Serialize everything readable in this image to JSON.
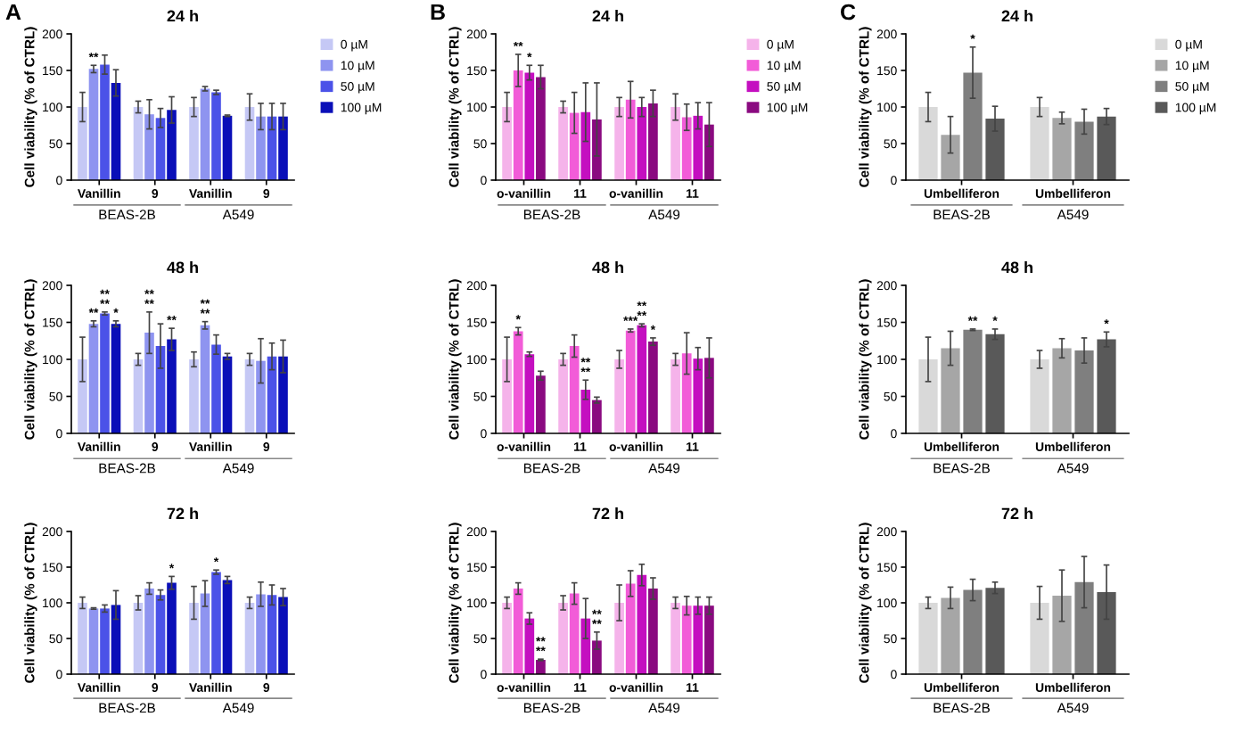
{
  "chart_data": [
    {
      "type": "bar",
      "title": "24 h",
      "ylabel": "Cell viability (% of CTRL)",
      "categories": [
        "Vanillin",
        "9",
        "Vanillin",
        "9"
      ],
      "ylim": [
        0,
        200
      ],
      "yticks": [
        0,
        50,
        100,
        150,
        200
      ],
      "grid": false,
      "legend": "right",
      "annotations": [
        "A",
        "BEAS-2B",
        "A549"
      ],
      "series": [
        {
          "name": "0 µM",
          "color": "#c5c8f5",
          "values": [
            100,
            100,
            100,
            100
          ],
          "errors": [
            20,
            8,
            13,
            18
          ],
          "value_labels": [
            null,
            null,
            null,
            null
          ]
        },
        {
          "name": "10 µM",
          "color": "#8e94f0",
          "values": [
            152,
            90,
            125,
            87
          ],
          "errors": [
            5,
            20,
            3,
            18
          ],
          "value_labels": [
            "**",
            null,
            null,
            null
          ]
        },
        {
          "name": "50 µM",
          "color": "#4b52e8",
          "values": [
            158,
            85,
            120,
            87
          ],
          "errors": [
            13,
            13,
            3,
            18
          ],
          "value_labels": [
            null,
            null,
            null,
            null
          ]
        },
        {
          "name": "100 µM",
          "color": "#0a0fb8",
          "values": [
            133,
            96,
            88,
            87
          ],
          "errors": [
            18,
            18,
            1,
            18
          ],
          "value_labels": [
            null,
            null,
            null,
            null
          ]
        }
      ]
    },
    {
      "type": "bar",
      "title": "48 h",
      "ylabel": "Cell viability (% of CTRL)",
      "categories": [
        "Vanillin",
        "9",
        "Vanillin",
        "9"
      ],
      "ylim": [
        0,
        200
      ],
      "yticks": [
        0,
        50,
        100,
        150,
        200
      ],
      "grid": false,
      "legend": false,
      "annotations": [
        "BEAS-2B",
        "A549"
      ],
      "series": [
        {
          "color": "#c5c8f5",
          "values": [
            100,
            100,
            100,
            100
          ],
          "errors": [
            30,
            8,
            10,
            8
          ],
          "value_labels": [
            null,
            null,
            null,
            null
          ]
        },
        {
          "color": "#8e94f0",
          "values": [
            148,
            136,
            146,
            98
          ],
          "errors": [
            4,
            28,
            5,
            30
          ],
          "value_labels": [
            "**",
            "**\n**",
            "**\n**",
            null
          ]
        },
        {
          "color": "#4b52e8",
          "values": [
            162,
            118,
            120,
            104
          ],
          "errors": [
            2,
            30,
            13,
            18
          ],
          "value_labels": [
            "**\n**",
            null,
            null,
            null
          ]
        },
        {
          "color": "#0a0fb8",
          "values": [
            148,
            127,
            104,
            104
          ],
          "errors": [
            4,
            15,
            4,
            22
          ],
          "value_labels": [
            "*",
            "**",
            null,
            null
          ]
        }
      ]
    },
    {
      "type": "bar",
      "title": "72 h",
      "ylabel": "Cell viability (% of CTRL)",
      "categories": [
        "Vanillin",
        "9",
        "Vanillin",
        "9"
      ],
      "ylim": [
        0,
        200
      ],
      "yticks": [
        0,
        50,
        100,
        150,
        200
      ],
      "grid": false,
      "legend": false,
      "annotations": [
        "BEAS-2B",
        "A549"
      ],
      "series": [
        {
          "color": "#c5c8f5",
          "values": [
            100,
            100,
            100,
            100
          ],
          "errors": [
            8,
            10,
            23,
            8
          ],
          "value_labels": [
            null,
            null,
            null,
            null
          ]
        },
        {
          "color": "#8e94f0",
          "values": [
            92,
            120,
            113,
            112
          ],
          "errors": [
            1,
            8,
            18,
            17
          ],
          "value_labels": [
            null,
            null,
            null,
            null
          ]
        },
        {
          "color": "#4b52e8",
          "values": [
            92,
            111,
            143,
            111
          ],
          "errors": [
            5,
            7,
            3,
            14
          ],
          "value_labels": [
            null,
            null,
            "*",
            null
          ]
        },
        {
          "color": "#0a0fb8",
          "values": [
            97,
            128,
            132,
            108
          ],
          "errors": [
            20,
            9,
            5,
            12
          ],
          "value_labels": [
            null,
            "*",
            null,
            null
          ]
        }
      ]
    },
    {
      "type": "bar",
      "title": "24 h",
      "ylabel": "Cell viability (% of CTRL)",
      "categories": [
        "o-vanillin",
        "11",
        "o-vanillin",
        "11"
      ],
      "ylim": [
        0,
        200
      ],
      "yticks": [
        0,
        50,
        100,
        150,
        200
      ],
      "grid": false,
      "legend": "right",
      "annotations": [
        "B",
        "BEAS-2B",
        "A549"
      ],
      "series": [
        {
          "name": "0 µM",
          "color": "#f5b3ea",
          "values": [
            100,
            100,
            100,
            100
          ],
          "errors": [
            20,
            8,
            13,
            18
          ],
          "value_labels": [
            null,
            null,
            null,
            null
          ]
        },
        {
          "name": "10 µM",
          "color": "#f25cd8",
          "values": [
            150,
            92,
            110,
            86
          ],
          "errors": [
            22,
            28,
            25,
            18
          ],
          "value_labels": [
            "**",
            null,
            null,
            null
          ]
        },
        {
          "name": "50 µM",
          "color": "#c40fc0",
          "values": [
            147,
            93,
            100,
            88
          ],
          "errors": [
            10,
            40,
            13,
            18
          ],
          "value_labels": [
            "*",
            null,
            null,
            null
          ]
        },
        {
          "name": "100 µM",
          "color": "#8a0a80",
          "values": [
            141,
            83,
            105,
            76
          ],
          "errors": [
            16,
            50,
            18,
            30
          ],
          "value_labels": [
            null,
            null,
            null,
            null
          ]
        }
      ]
    },
    {
      "type": "bar",
      "title": "48 h",
      "ylabel": "Cell viability (% of CTRL)",
      "categories": [
        "o-vanillin",
        "11",
        "o-vanillin",
        "11"
      ],
      "ylim": [
        0,
        200
      ],
      "yticks": [
        0,
        50,
        100,
        150,
        200
      ],
      "grid": false,
      "legend": false,
      "annotations": [
        "BEAS-2B",
        "A549"
      ],
      "series": [
        {
          "color": "#f5b3ea",
          "values": [
            100,
            100,
            100,
            100
          ],
          "errors": [
            30,
            8,
            12,
            8
          ],
          "value_labels": [
            null,
            null,
            null,
            null
          ]
        },
        {
          "color": "#f25cd8",
          "values": [
            138,
            118,
            139,
            108
          ],
          "errors": [
            5,
            15,
            2,
            28
          ],
          "value_labels": [
            "*",
            null,
            "***",
            null
          ]
        },
        {
          "color": "#c40fc0",
          "values": [
            107,
            59,
            146,
            101
          ],
          "errors": [
            3,
            13,
            2,
            15
          ],
          "value_labels": [
            null,
            "**\n**",
            "**\n**",
            null
          ]
        },
        {
          "color": "#8a0a80",
          "values": [
            78,
            45,
            124,
            102
          ],
          "errors": [
            6,
            4,
            5,
            27
          ],
          "value_labels": [
            null,
            null,
            "*",
            null
          ]
        }
      ]
    },
    {
      "type": "bar",
      "title": "72 h",
      "ylabel": "Cell viability (% of CTRL)",
      "categories": [
        "o-vanillin",
        "11",
        "o-vanillin",
        "11"
      ],
      "ylim": [
        0,
        200
      ],
      "yticks": [
        0,
        50,
        100,
        150,
        200
      ],
      "grid": false,
      "legend": false,
      "annotations": [
        "BEAS-2B",
        "A549"
      ],
      "series": [
        {
          "color": "#f5b3ea",
          "values": [
            100,
            100,
            100,
            100
          ],
          "errors": [
            8,
            10,
            25,
            8
          ],
          "value_labels": [
            null,
            null,
            null,
            null
          ]
        },
        {
          "color": "#f25cd8",
          "values": [
            120,
            113,
            127,
            96
          ],
          "errors": [
            8,
            15,
            18,
            13
          ],
          "value_labels": [
            null,
            null,
            null,
            null
          ]
        },
        {
          "color": "#c40fc0",
          "values": [
            78,
            78,
            139,
            96
          ],
          "errors": [
            8,
            28,
            15,
            12
          ],
          "value_labels": [
            null,
            null,
            null,
            null
          ]
        },
        {
          "color": "#8a0a80",
          "values": [
            20,
            47,
            120,
            96
          ],
          "errors": [
            1,
            12,
            15,
            12
          ],
          "value_labels": [
            "**\n**",
            "**\n**",
            null,
            null
          ]
        }
      ]
    },
    {
      "type": "bar",
      "title": "24 h",
      "ylabel": "Cell viability (% of CTRL)",
      "categories": [
        "Umbelliferon",
        "Umbelliferon"
      ],
      "ylim": [
        0,
        200
      ],
      "yticks": [
        0,
        50,
        100,
        150,
        200
      ],
      "grid": false,
      "legend": "right",
      "annotations": [
        "C",
        "BEAS-2B",
        "A549"
      ],
      "series": [
        {
          "name": "0 µM",
          "color": "#d9d9d9",
          "values": [
            100,
            100
          ],
          "errors": [
            20,
            13
          ],
          "value_labels": [
            null,
            null
          ]
        },
        {
          "name": "10 µM",
          "color": "#a6a6a6",
          "values": [
            62,
            85
          ],
          "errors": [
            25,
            8
          ],
          "value_labels": [
            null,
            null
          ]
        },
        {
          "name": "50 µM",
          "color": "#7f7f7f",
          "values": [
            147,
            80
          ],
          "errors": [
            35,
            17
          ],
          "value_labels": [
            "*",
            null
          ]
        },
        {
          "name": "100 µM",
          "color": "#595959",
          "values": [
            84,
            87
          ],
          "errors": [
            17,
            11
          ],
          "value_labels": [
            null,
            null
          ]
        }
      ]
    },
    {
      "type": "bar",
      "title": "48 h",
      "ylabel": "Cell viability (% of CTRL)",
      "categories": [
        "Umbelliferon",
        "Umbelliferon"
      ],
      "ylim": [
        0,
        200
      ],
      "yticks": [
        0,
        50,
        100,
        150,
        200
      ],
      "grid": false,
      "legend": false,
      "annotations": [
        "BEAS-2B",
        "A549"
      ],
      "series": [
        {
          "color": "#d9d9d9",
          "values": [
            100,
            100
          ],
          "errors": [
            30,
            12
          ],
          "value_labels": [
            null,
            null
          ]
        },
        {
          "color": "#a6a6a6",
          "values": [
            115,
            115
          ],
          "errors": [
            23,
            13
          ],
          "value_labels": [
            null,
            null
          ]
        },
        {
          "color": "#7f7f7f",
          "values": [
            140,
            112
          ],
          "errors": [
            1,
            17
          ],
          "value_labels": [
            "**",
            null
          ]
        },
        {
          "color": "#595959",
          "values": [
            134,
            127
          ],
          "errors": [
            7,
            10
          ],
          "value_labels": [
            "*",
            "*"
          ]
        }
      ]
    },
    {
      "type": "bar",
      "title": "72 h",
      "ylabel": "Cell viability (% of CTRL)",
      "categories": [
        "Umbelliferon",
        "Umbelliferon"
      ],
      "ylim": [
        0,
        200
      ],
      "yticks": [
        0,
        50,
        100,
        150,
        200
      ],
      "grid": false,
      "legend": false,
      "annotations": [
        "BEAS-2B",
        "A549"
      ],
      "series": [
        {
          "color": "#d9d9d9",
          "values": [
            100,
            100
          ],
          "errors": [
            8,
            23
          ],
          "value_labels": [
            null,
            null
          ]
        },
        {
          "color": "#a6a6a6",
          "values": [
            107,
            110
          ],
          "errors": [
            15,
            36
          ],
          "value_labels": [
            null,
            null
          ]
        },
        {
          "color": "#7f7f7f",
          "values": [
            118,
            129
          ],
          "errors": [
            15,
            36
          ],
          "value_labels": [
            null,
            null
          ]
        },
        {
          "color": "#595959",
          "values": [
            121,
            115
          ],
          "errors": [
            8,
            38
          ],
          "value_labels": [
            null,
            null
          ]
        }
      ]
    }
  ]
}
